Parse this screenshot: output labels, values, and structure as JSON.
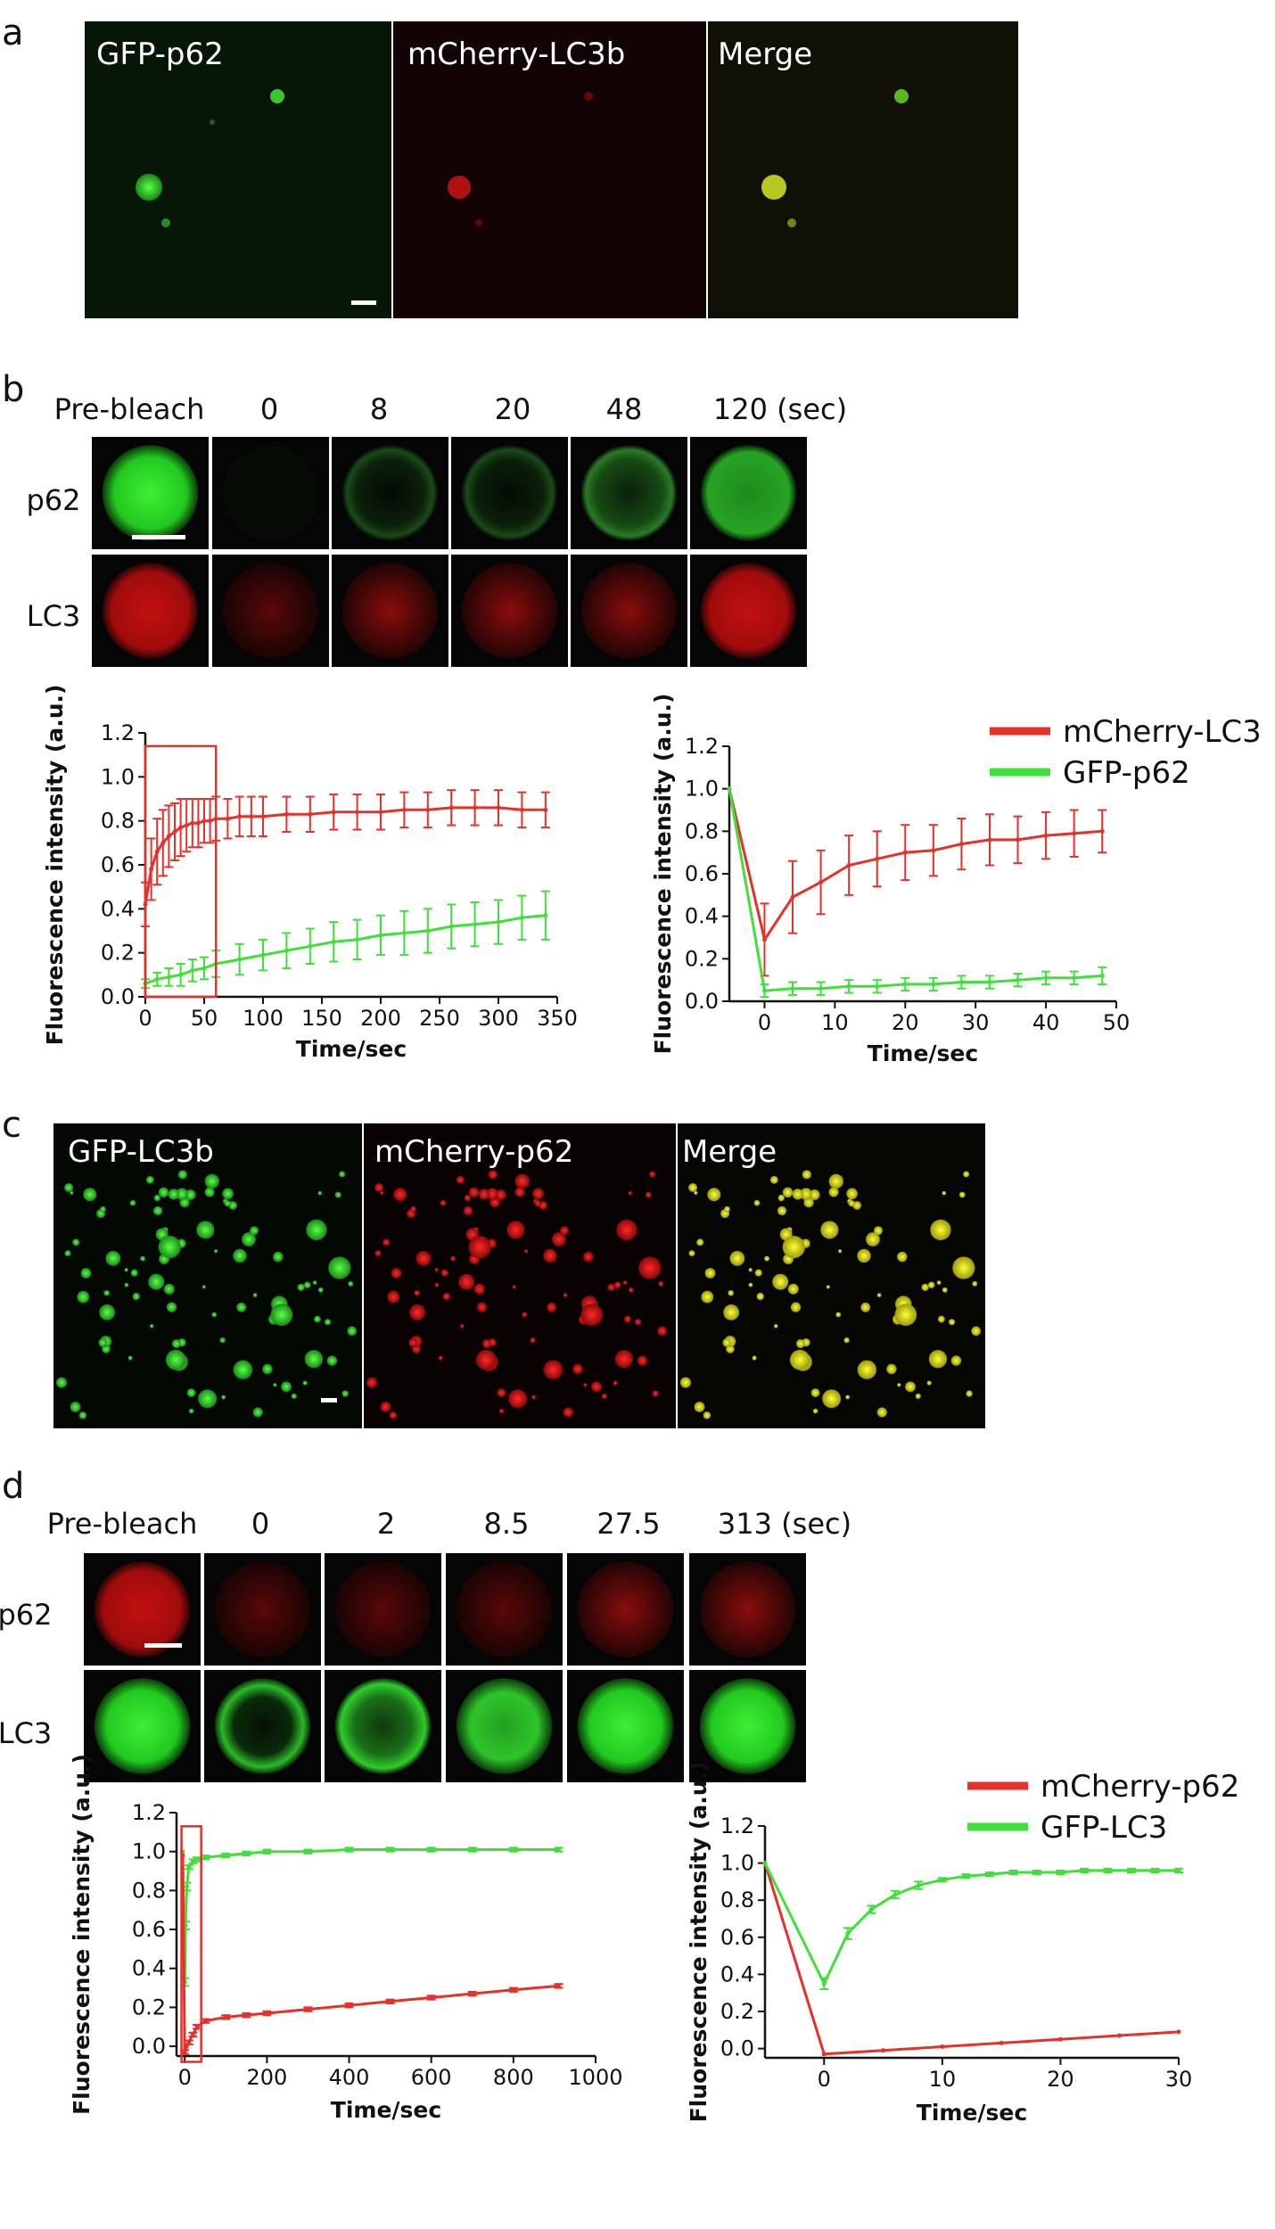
{
  "panel_letters": {
    "a": "a",
    "b": "b",
    "c": "c",
    "d": "d"
  },
  "panel_a": {
    "labels": [
      "GFP-p62",
      "mCherry-LC3b",
      "Merge"
    ]
  },
  "panel_b": {
    "time_labels": [
      "Pre-bleach",
      "0",
      "8",
      "20",
      "48",
      "120 (sec)"
    ],
    "row_labels": [
      "p62",
      "LC3"
    ]
  },
  "panel_c": {
    "labels": [
      "GFP-LC3b",
      "mCherry-p62",
      "Merge"
    ]
  },
  "panel_d": {
    "time_labels": [
      "Pre-bleach",
      "0",
      "2",
      "8.5",
      "27.5",
      "313 (sec)"
    ],
    "row_labels": [
      "p62",
      "LC3"
    ]
  },
  "colors": {
    "red": "#e8302a",
    "green": "#3fe03a",
    "box": "#e8302a"
  },
  "chart_data": [
    {
      "id": "b-left",
      "type": "line",
      "xlabel": "Time/sec",
      "ylabel": "Fluorescence intensity (a.u.)",
      "xlim": [
        0,
        350
      ],
      "ylim": [
        0,
        1.2
      ],
      "xticks": [
        0,
        50,
        100,
        150,
        200,
        250,
        300,
        350
      ],
      "yticks": [
        0.0,
        0.2,
        0.4,
        0.6,
        0.8,
        1.0,
        1.2
      ],
      "series": [
        {
          "color": "red",
          "x": [
            0,
            5,
            10,
            15,
            20,
            25,
            30,
            35,
            40,
            45,
            50,
            55,
            60,
            70,
            80,
            90,
            100,
            120,
            140,
            160,
            180,
            200,
            220,
            240,
            260,
            280,
            300,
            320,
            340
          ],
          "y": [
            0.42,
            0.58,
            0.66,
            0.7,
            0.73,
            0.75,
            0.77,
            0.78,
            0.79,
            0.79,
            0.8,
            0.8,
            0.81,
            0.81,
            0.82,
            0.82,
            0.82,
            0.83,
            0.83,
            0.84,
            0.84,
            0.84,
            0.85,
            0.85,
            0.86,
            0.86,
            0.86,
            0.85,
            0.85
          ],
          "err": [
            0.1,
            0.14,
            0.15,
            0.15,
            0.14,
            0.13,
            0.13,
            0.12,
            0.11,
            0.11,
            0.1,
            0.1,
            0.1,
            0.09,
            0.09,
            0.09,
            0.09,
            0.08,
            0.08,
            0.08,
            0.08,
            0.08,
            0.08,
            0.08,
            0.08,
            0.08,
            0.08,
            0.08,
            0.08
          ]
        },
        {
          "color": "green",
          "x": [
            0,
            10,
            20,
            30,
            40,
            50,
            60,
            80,
            100,
            120,
            140,
            160,
            180,
            200,
            220,
            240,
            260,
            280,
            300,
            320,
            340
          ],
          "y": [
            0.06,
            0.08,
            0.09,
            0.1,
            0.12,
            0.13,
            0.15,
            0.17,
            0.19,
            0.21,
            0.23,
            0.25,
            0.26,
            0.28,
            0.29,
            0.3,
            0.32,
            0.33,
            0.34,
            0.36,
            0.37
          ],
          "err": [
            0.02,
            0.03,
            0.04,
            0.05,
            0.05,
            0.05,
            0.06,
            0.07,
            0.07,
            0.08,
            0.08,
            0.09,
            0.09,
            0.09,
            0.1,
            0.1,
            0.1,
            0.1,
            0.1,
            0.1,
            0.11
          ]
        }
      ],
      "highlight_box": {
        "x": [
          0,
          60
        ],
        "y": [
          0,
          1.14
        ]
      }
    },
    {
      "id": "b-right",
      "type": "line",
      "xlabel": "Time/sec",
      "ylabel": "Fluorescence intensity (a.u.)",
      "xlim": [
        -5,
        50
      ],
      "ylim": [
        0,
        1.2
      ],
      "xticks": [
        0,
        10,
        20,
        30,
        40,
        50
      ],
      "yticks": [
        0.0,
        0.2,
        0.4,
        0.6,
        0.8,
        1.0,
        1.2
      ],
      "legend": {
        "entries": [
          "mCherry-LC3",
          "GFP-p62"
        ],
        "position": "top-right"
      },
      "series": [
        {
          "name": "mCherry-LC3",
          "color": "red",
          "x": [
            -5,
            0,
            4,
            8,
            12,
            16,
            20,
            24,
            28,
            32,
            36,
            40,
            44,
            48
          ],
          "y": [
            1.0,
            0.29,
            0.49,
            0.56,
            0.64,
            0.67,
            0.7,
            0.71,
            0.74,
            0.76,
            0.76,
            0.78,
            0.79,
            0.8
          ],
          "err": [
            0,
            0.17,
            0.17,
            0.15,
            0.14,
            0.13,
            0.13,
            0.12,
            0.12,
            0.12,
            0.11,
            0.11,
            0.11,
            0.1
          ]
        },
        {
          "name": "GFP-p62",
          "color": "green",
          "x": [
            -5,
            0,
            4,
            8,
            12,
            16,
            20,
            24,
            28,
            32,
            36,
            40,
            44,
            48
          ],
          "y": [
            1.0,
            0.05,
            0.06,
            0.06,
            0.07,
            0.07,
            0.08,
            0.08,
            0.09,
            0.09,
            0.1,
            0.11,
            0.11,
            0.12
          ],
          "err": [
            0,
            0.03,
            0.03,
            0.03,
            0.03,
            0.03,
            0.03,
            0.03,
            0.03,
            0.03,
            0.03,
            0.03,
            0.03,
            0.04
          ]
        }
      ]
    },
    {
      "id": "d-left",
      "type": "line",
      "xlabel": "Time/sec",
      "ylabel": "Fluorescence intensity (a.u.)",
      "xlim": [
        -20,
        1000
      ],
      "ylim": [
        -0.05,
        1.2
      ],
      "xticks": [
        0,
        200,
        400,
        600,
        800,
        1000
      ],
      "yticks": [
        0.0,
        0.2,
        0.4,
        0.6,
        0.8,
        1.0,
        1.2
      ],
      "series": [
        {
          "color": "green",
          "x": [
            -5,
            0,
            2,
            5,
            10,
            20,
            30,
            50,
            100,
            150,
            200,
            300,
            400,
            500,
            600,
            700,
            800,
            910
          ],
          "y": [
            1.0,
            0.33,
            0.62,
            0.82,
            0.92,
            0.95,
            0.96,
            0.97,
            0.98,
            0.99,
            1.0,
            1.0,
            1.01,
            1.01,
            1.01,
            1.01,
            1.01,
            1.01
          ],
          "err": [
            0,
            0.02,
            0.02,
            0.02,
            0.01,
            0.01,
            0.01,
            0.01,
            0.01,
            0.01,
            0.01,
            0.01,
            0.01,
            0.01,
            0.01,
            0.01,
            0.01,
            0.01
          ]
        },
        {
          "color": "red",
          "x": [
            -5,
            0,
            10,
            20,
            30,
            50,
            100,
            150,
            200,
            300,
            400,
            500,
            600,
            700,
            800,
            910
          ],
          "y": [
            0.98,
            -0.03,
            0.02,
            0.06,
            0.1,
            0.13,
            0.15,
            0.16,
            0.17,
            0.19,
            0.21,
            0.23,
            0.25,
            0.27,
            0.29,
            0.31
          ],
          "err": [
            0,
            0.01,
            0.01,
            0.01,
            0.01,
            0.01,
            0.01,
            0.01,
            0.01,
            0.01,
            0.01,
            0.01,
            0.01,
            0.01,
            0.01,
            0.01
          ]
        }
      ],
      "highlight_box": {
        "x": [
          -8,
          40
        ],
        "y": [
          -0.08,
          1.13
        ]
      }
    },
    {
      "id": "d-right",
      "type": "line",
      "xlabel": "Time/sec",
      "ylabel": "Fluorescence intensity (a.u.)",
      "xlim": [
        -5,
        30
      ],
      "ylim": [
        -0.05,
        1.2
      ],
      "xticks": [
        0,
        10,
        20,
        30
      ],
      "yticks": [
        0.0,
        0.2,
        0.4,
        0.6,
        0.8,
        1.0,
        1.2
      ],
      "legend": {
        "entries": [
          "mCherry-p62",
          "GFP-LC3"
        ],
        "position": "top-right"
      },
      "series": [
        {
          "name": "mCherry-p62",
          "color": "red",
          "x": [
            -5,
            0,
            5,
            10,
            15,
            20,
            25,
            30
          ],
          "y": [
            1.0,
            -0.03,
            -0.01,
            0.01,
            0.03,
            0.05,
            0.07,
            0.09
          ],
          "err": [
            0,
            0,
            0,
            0,
            0,
            0,
            0,
            0
          ]
        },
        {
          "name": "GFP-LC3",
          "color": "green",
          "x": [
            -5,
            0,
            2,
            4,
            6,
            8,
            10,
            12,
            14,
            16,
            18,
            20,
            22,
            24,
            26,
            28,
            30
          ],
          "y": [
            1.0,
            0.35,
            0.62,
            0.75,
            0.83,
            0.88,
            0.91,
            0.93,
            0.94,
            0.95,
            0.95,
            0.95,
            0.96,
            0.96,
            0.96,
            0.96,
            0.96
          ],
          "err": [
            0,
            0.03,
            0.03,
            0.02,
            0.02,
            0.02,
            0.01,
            0.01,
            0.01,
            0.01,
            0.01,
            0.01,
            0.01,
            0.01,
            0.01,
            0.01,
            0.01
          ]
        }
      ]
    }
  ]
}
